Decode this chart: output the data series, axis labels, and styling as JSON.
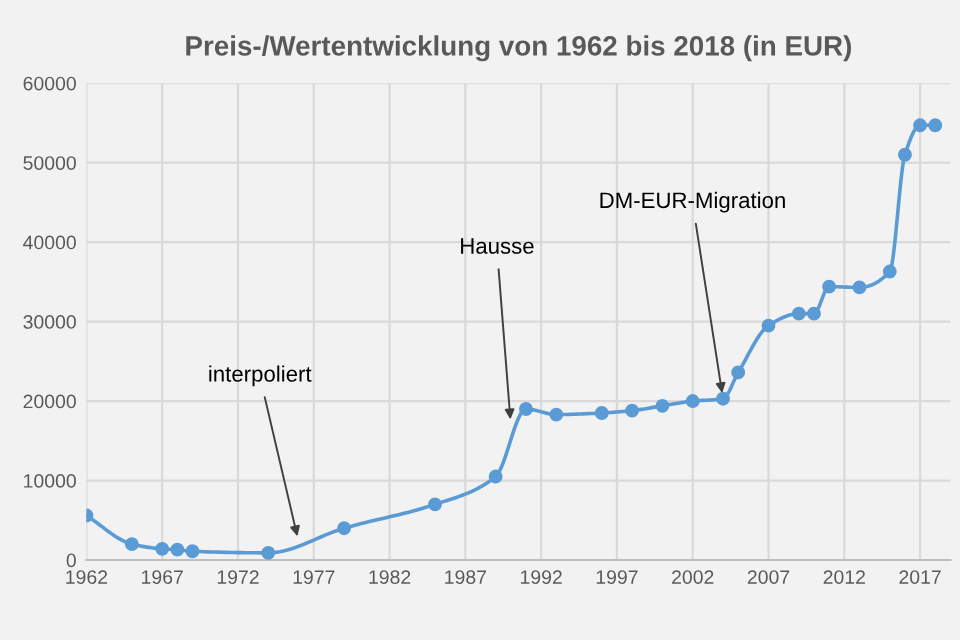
{
  "chart_data": {
    "type": "line",
    "title": "Preis-/Wertentwicklung von 1962 bis 2018 (in EUR)",
    "x": [
      1962,
      1965,
      1967,
      1968,
      1969,
      1974,
      1979,
      1985,
      1989,
      1991,
      1993,
      1996,
      1998,
      2000,
      2002,
      2004,
      2005,
      2007,
      2009,
      2010,
      2011,
      2013,
      2015,
      2016,
      2017,
      2018
    ],
    "series": [
      {
        "color": "#5b9bd5",
        "values": [
          5600,
          2000,
          1400,
          1300,
          1100,
          900,
          4000,
          7000,
          10500,
          19000,
          18300,
          18500,
          18800,
          19400,
          20000,
          20300,
          23600,
          29500,
          31000,
          31000,
          34400,
          34300,
          36300,
          51000,
          54700,
          54700
        ]
      }
    ],
    "xlim": [
      1962,
      2019
    ],
    "xticks": [
      1962,
      1967,
      1972,
      1977,
      1982,
      1987,
      1992,
      1997,
      2002,
      2007,
      2012,
      2017
    ],
    "ylim": [
      0,
      60000
    ],
    "yticks": [
      0,
      10000,
      20000,
      30000,
      40000,
      50000,
      60000
    ],
    "grid": true,
    "marker": "circle",
    "line_style": "solid",
    "legend": false,
    "annotations": [
      {
        "text": "interpoliert",
        "x": 1976,
        "y": 2300
      },
      {
        "text": "Hausse",
        "x": 1990,
        "y": 17000
      },
      {
        "text": "DM-EUR-Migration",
        "x": 2004,
        "y": 20300
      }
    ]
  }
}
